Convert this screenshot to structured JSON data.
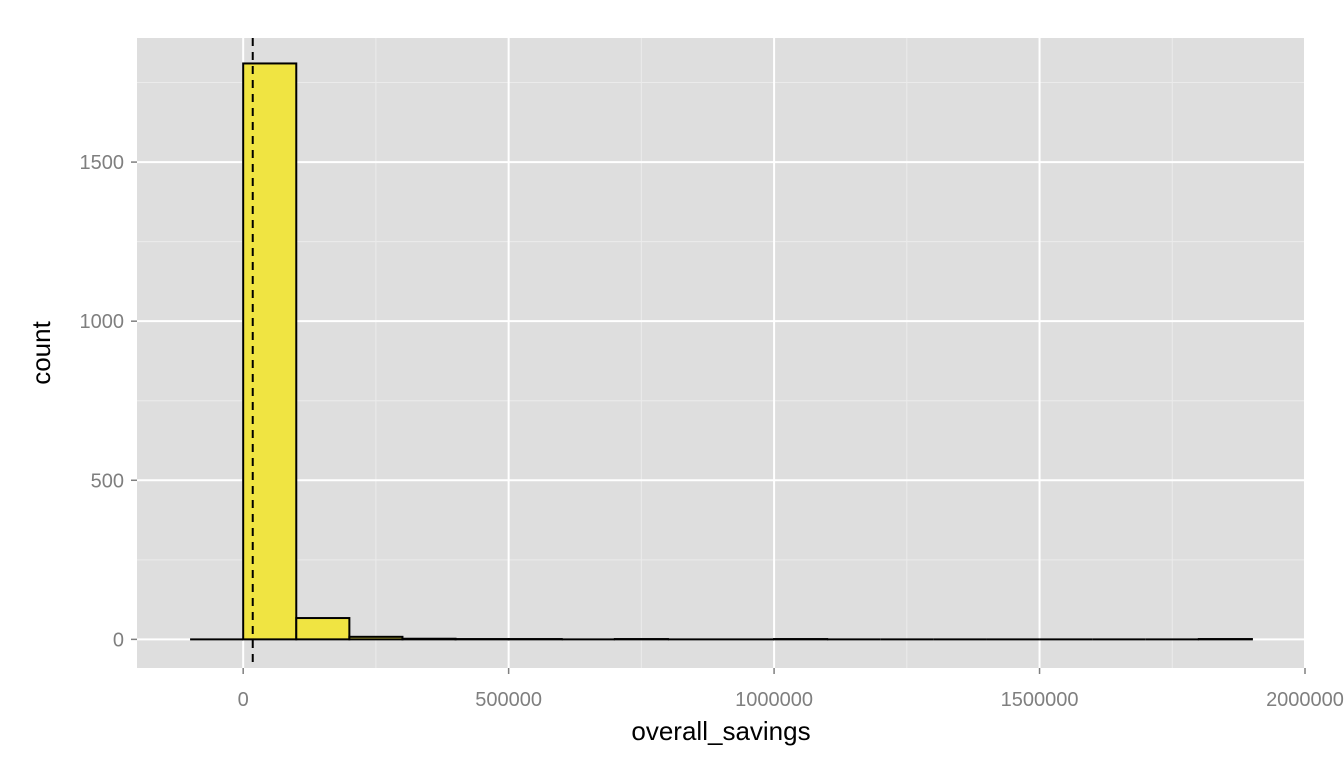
{
  "chart_data": {
    "type": "bar",
    "subtype": "histogram",
    "xlabel": "overall_savings",
    "ylabel": "count",
    "xlim": [
      -200000,
      2000000
    ],
    "ylim": [
      -90,
      1890
    ],
    "x_ticks": [
      0,
      500000,
      1000000,
      1500000,
      2000000
    ],
    "x_tick_labels": [
      "0",
      "500000",
      "1000000",
      "1500000",
      "2000000"
    ],
    "y_ticks": [
      0,
      500,
      1000,
      1500
    ],
    "y_tick_labels": [
      "0",
      "500",
      "1000",
      "1500"
    ],
    "x_minor_ticks": [
      -250000,
      250000,
      750000,
      1250000,
      1750000
    ],
    "y_minor_ticks": [
      250,
      750,
      1250,
      1750
    ],
    "bins": [
      {
        "x0": -100000,
        "x1": 0,
        "count": 0
      },
      {
        "x0": 0,
        "x1": 100000,
        "count": 1810
      },
      {
        "x0": 100000,
        "x1": 200000,
        "count": 67
      },
      {
        "x0": 200000,
        "x1": 300000,
        "count": 8
      },
      {
        "x0": 300000,
        "x1": 400000,
        "count": 2
      },
      {
        "x0": 400000,
        "x1": 500000,
        "count": 1
      },
      {
        "x0": 500000,
        "x1": 600000,
        "count": 1
      },
      {
        "x0": 600000,
        "x1": 700000,
        "count": 0
      },
      {
        "x0": 700000,
        "x1": 800000,
        "count": 1
      },
      {
        "x0": 800000,
        "x1": 900000,
        "count": 0
      },
      {
        "x0": 900000,
        "x1": 1000000,
        "count": 0
      },
      {
        "x0": 1000000,
        "x1": 1100000,
        "count": 1
      },
      {
        "x0": 1100000,
        "x1": 1200000,
        "count": 0
      },
      {
        "x0": 1200000,
        "x1": 1300000,
        "count": 0
      },
      {
        "x0": 1300000,
        "x1": 1400000,
        "count": 0
      },
      {
        "x0": 1400000,
        "x1": 1500000,
        "count": 0
      },
      {
        "x0": 1500000,
        "x1": 1600000,
        "count": 0
      },
      {
        "x0": 1600000,
        "x1": 1700000,
        "count": 0
      },
      {
        "x0": 1700000,
        "x1": 1800000,
        "count": 0
      },
      {
        "x0": 1800000,
        "x1": 1900000,
        "count": 1
      }
    ],
    "vline": {
      "x": 18000,
      "style": "dashed"
    },
    "grid": true,
    "legend": "none",
    "colors": {
      "panel_background": "#dedede",
      "grid_major": "#ffffff",
      "grid_minor": "#ebebeb",
      "bar_fill": "#f0e442",
      "bar_outline": "#000000",
      "tick_text": "#7f7f7f",
      "title_text": "#000000"
    }
  }
}
